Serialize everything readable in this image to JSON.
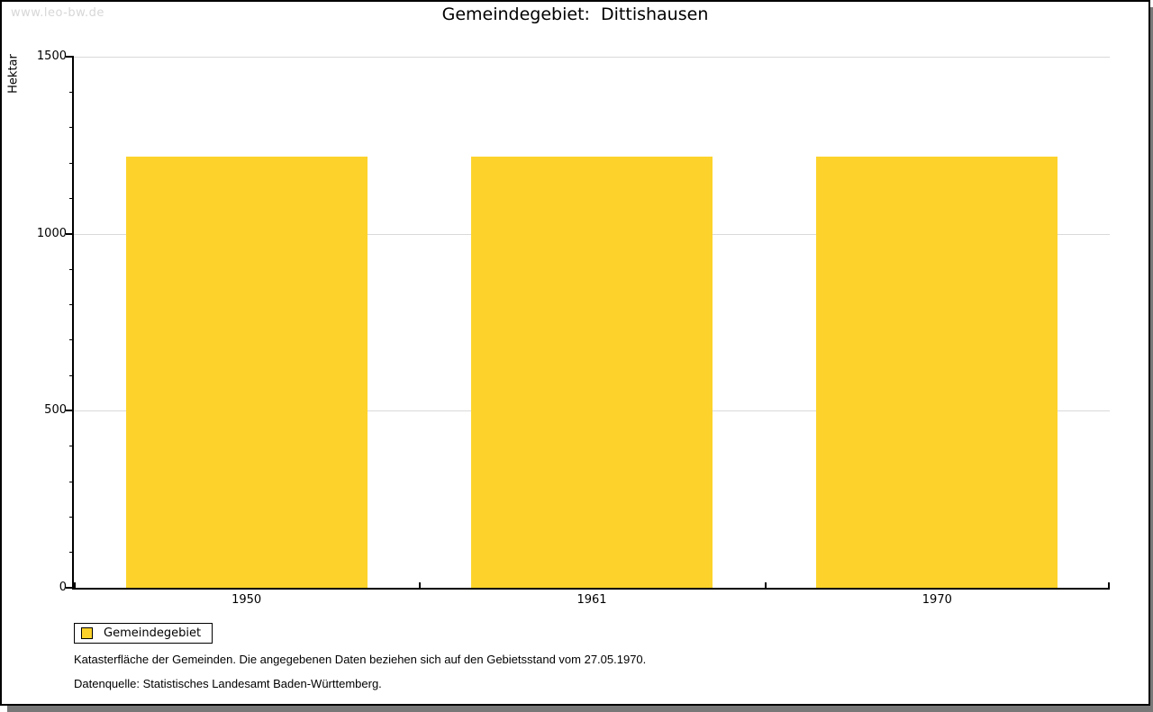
{
  "watermark": "www.leo-bw.de",
  "frame": {
    "border_color": "#000000",
    "shadow_color": "#787878"
  },
  "chart_data": {
    "type": "bar",
    "title": "Gemeindegebiet:  Dittishausen",
    "ylabel": "Hektar",
    "xlabel": "",
    "categories": [
      "1950",
      "1961",
      "1970"
    ],
    "series": [
      {
        "name": "Gemeindegebiet",
        "values": [
          1218,
          1218,
          1218
        ]
      }
    ],
    "ylim": [
      0,
      1500
    ],
    "y_major_ticks": [
      0,
      500,
      1000,
      1500
    ],
    "y_minor_tick_step": 100,
    "grid": "horizontal-major",
    "legend_position": "bottom-left",
    "bar_color": "#fdd32b",
    "grid_color": "#d9d9d9"
  },
  "legend": {
    "label": "Gemeindegebiet"
  },
  "footnotes": [
    "Katasterfläche der Gemeinden. Die angegebenen Daten beziehen sich auf den Gebietsstand vom 27.05.1970.",
    "Datenquelle: Statistisches Landesamt Baden-Württemberg."
  ]
}
